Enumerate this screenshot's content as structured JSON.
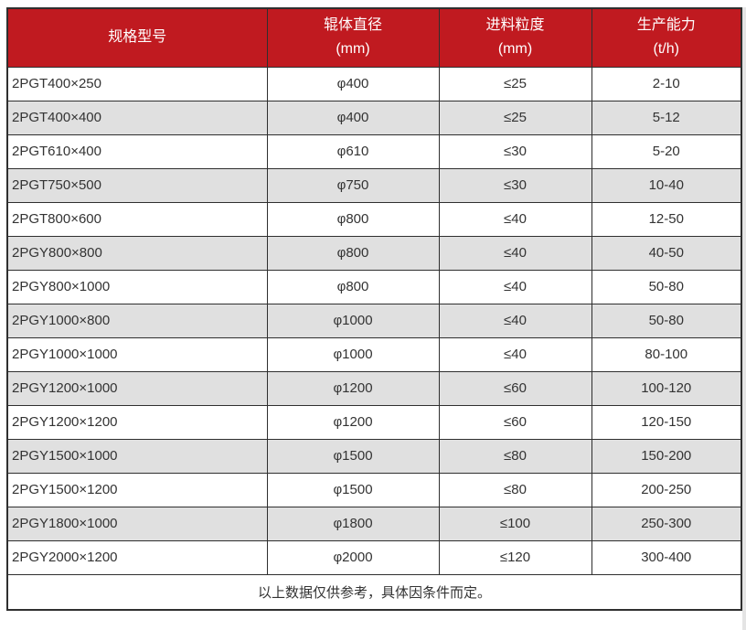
{
  "table": {
    "columns": [
      {
        "title": "规格型号",
        "unit": ""
      },
      {
        "title": "辊体直径",
        "unit": "(mm)"
      },
      {
        "title": "进料粒度",
        "unit": "(mm)"
      },
      {
        "title": "生产能力",
        "unit": "(t/h)"
      }
    ],
    "rows": [
      [
        "2PGT400×250",
        "φ400",
        "≤25",
        "2-10"
      ],
      [
        "2PGT400×400",
        "φ400",
        "≤25",
        "5-12"
      ],
      [
        "2PGT610×400",
        "φ610",
        "≤30",
        "5-20"
      ],
      [
        "2PGT750×500",
        "φ750",
        "≤30",
        "10-40"
      ],
      [
        "2PGT800×600",
        "φ800",
        "≤40",
        "12-50"
      ],
      [
        "2PGY800×800",
        "φ800",
        "≤40",
        "40-50"
      ],
      [
        "2PGY800×1000",
        "φ800",
        "≤40",
        "50-80"
      ],
      [
        "2PGY1000×800",
        "φ1000",
        "≤40",
        "50-80"
      ],
      [
        "2PGY1000×1000",
        "φ1000",
        "≤40",
        "80-100"
      ],
      [
        "2PGY1200×1000",
        "φ1200",
        "≤60",
        "100-120"
      ],
      [
        "2PGY1200×1200",
        "φ1200",
        "≤60",
        "120-150"
      ],
      [
        "2PGY1500×1000",
        "φ1500",
        "≤80",
        "150-200"
      ],
      [
        "2PGY1500×1200",
        "φ1500",
        "≤80",
        "200-250"
      ],
      [
        "2PGY1800×1000",
        "φ1800",
        "≤100",
        "250-300"
      ],
      [
        "2PGY2000×1200",
        "φ2000",
        "≤120",
        "300-400"
      ]
    ],
    "footer_note": "以上数据仅供参考，具体因条件而定。"
  },
  "colors": {
    "header_bg": "#c01a20",
    "header_text": "#ffffff",
    "row_bg": "#ffffff",
    "row_alt_bg": "#e0e0e0",
    "border": "#2f2f2f",
    "text": "#333333",
    "page_edge": "#e4e4e4"
  },
  "chart_data": {
    "type": "table",
    "columns": [
      "规格型号",
      "辊体直径 (mm)",
      "进料粒度 (mm)",
      "生产能力 (t/h)"
    ],
    "rows": [
      [
        "2PGT400×250",
        "φ400",
        "≤25",
        "2-10"
      ],
      [
        "2PGT400×400",
        "φ400",
        "≤25",
        "5-12"
      ],
      [
        "2PGT610×400",
        "φ610",
        "≤30",
        "5-20"
      ],
      [
        "2PGT750×500",
        "φ750",
        "≤30",
        "10-40"
      ],
      [
        "2PGT800×600",
        "φ800",
        "≤40",
        "12-50"
      ],
      [
        "2PGY800×800",
        "φ800",
        "≤40",
        "40-50"
      ],
      [
        "2PGY800×1000",
        "φ800",
        "≤40",
        "50-80"
      ],
      [
        "2PGY1000×800",
        "φ1000",
        "≤40",
        "50-80"
      ],
      [
        "2PGY1000×1000",
        "φ1000",
        "≤40",
        "80-100"
      ],
      [
        "2PGY1200×1000",
        "φ1200",
        "≤60",
        "100-120"
      ],
      [
        "2PGY1200×1200",
        "φ1200",
        "≤60",
        "120-150"
      ],
      [
        "2PGY1500×1000",
        "φ1500",
        "≤80",
        "150-200"
      ],
      [
        "2PGY1500×1200",
        "φ1500",
        "≤80",
        "200-250"
      ],
      [
        "2PGY1800×1000",
        "φ1800",
        "≤100",
        "250-300"
      ],
      [
        "2PGY2000×1200",
        "φ2000",
        "≤120",
        "300-400"
      ]
    ],
    "note": "以上数据仅供参考，具体因条件而定。"
  }
}
